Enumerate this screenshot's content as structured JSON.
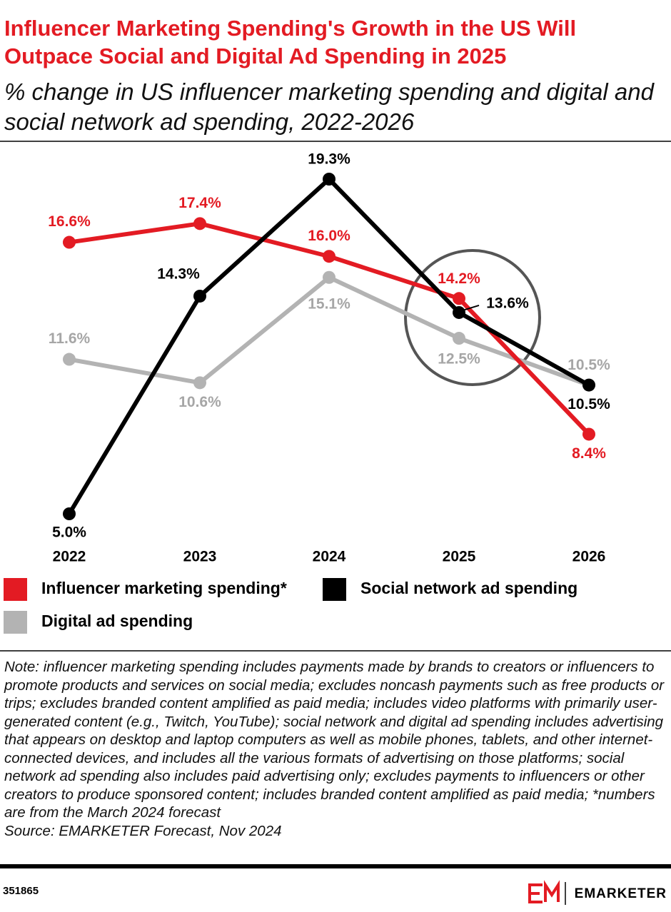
{
  "chart_data": {
    "type": "line",
    "title": "Influencer Marketing Spending's Growth in the US Will Outpace Social and Digital Ad Spending in 2025",
    "subtitle": "% change in US influencer marketing spending and digital and social network ad spending, 2022-2026",
    "categories": [
      "2022",
      "2023",
      "2024",
      "2025",
      "2026"
    ],
    "series": [
      {
        "name": "Influencer marketing spending*",
        "color": "#e31b23",
        "values": [
          16.6,
          17.4,
          16.0,
          14.2,
          8.4
        ],
        "value_labels": [
          "16.6%",
          "17.4%",
          "16.0%",
          "14.2%",
          "8.4%"
        ]
      },
      {
        "name": "Social network ad spending",
        "color": "#000000",
        "values": [
          5.0,
          14.3,
          19.3,
          13.6,
          10.5
        ],
        "value_labels": [
          "5.0%",
          "14.3%",
          "19.3%",
          "13.6%",
          "10.5%"
        ]
      },
      {
        "name": "Digital ad spending",
        "color": "#b3b3b3",
        "values": [
          11.6,
          10.6,
          15.1,
          12.5,
          10.5
        ],
        "value_labels": [
          "11.6%",
          "10.6%",
          "15.1%",
          "12.5%",
          "10.5%"
        ]
      }
    ],
    "note": "Note: influencer marketing spending includes payments made by brands to creators or influencers to promote products and services on social media; excludes noncash payments such as free products or trips; excludes branded content amplified as paid media; includes video platforms with primarily user-generated content (e.g., Twitch, YouTube); social network and digital ad spending includes advertising that appears on desktop and laptop computers as well as mobile phones, tablets, and other internet-connected devices, and includes all the various formats of advertising on those platforms; social network ad spending also includes paid advertising only; excludes payments to influencers or other creators to produce sponsored content; includes branded content amplified as paid media; *numbers are from the March 2024 forecast",
    "source": "Source: EMARKETER Forecast, Nov 2024",
    "chart_id": "351865",
    "brand": "EMARKETER"
  }
}
